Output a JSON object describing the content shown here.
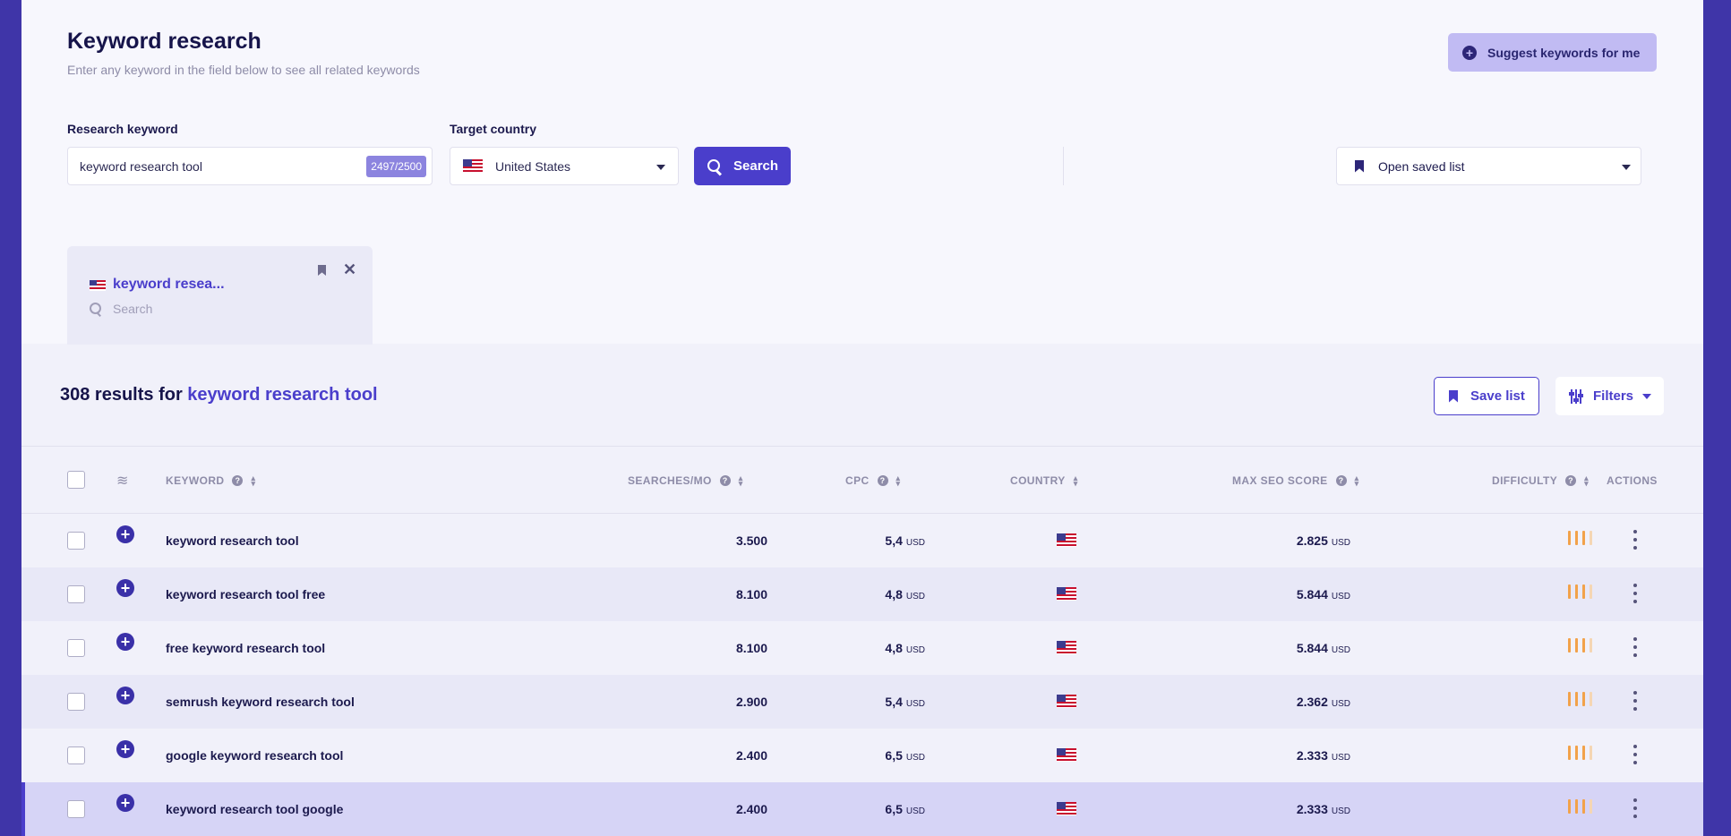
{
  "header": {
    "title": "Keyword research",
    "subtitle": "Enter any keyword in the field below to see all related keywords",
    "suggest_label": "Suggest keywords for me"
  },
  "search": {
    "keyword_label": "Research keyword",
    "keyword_value": "keyword research tool",
    "keyword_count": "2497/2500",
    "country_label": "Target country",
    "country_value": "United States",
    "search_label": "Search",
    "saved_list_label": "Open saved list"
  },
  "tab": {
    "title": "keyword resea...",
    "search_placeholder": "Search"
  },
  "results": {
    "count_prefix": "308 results for ",
    "query": "keyword research tool",
    "save_list_label": "Save list",
    "filters_label": "Filters"
  },
  "table": {
    "headers": {
      "keyword": "KEYWORD",
      "searches": "SEARCHES/MO",
      "cpc": "CPC",
      "country": "COUNTRY",
      "max_seo": "MAX SEO SCORE",
      "difficulty": "DIFFICULTY",
      "actions": "ACTIONS"
    },
    "unit": "USD",
    "rows": [
      {
        "keyword": "keyword research tool",
        "searches": "3.500",
        "cpc": "5,4",
        "max_seo": "2.825",
        "difficulty": 3
      },
      {
        "keyword": "keyword research tool free",
        "searches": "8.100",
        "cpc": "4,8",
        "max_seo": "5.844",
        "difficulty": 3
      },
      {
        "keyword": "free keyword research tool",
        "searches": "8.100",
        "cpc": "4,8",
        "max_seo": "5.844",
        "difficulty": 3
      },
      {
        "keyword": "semrush keyword research tool",
        "searches": "2.900",
        "cpc": "5,4",
        "max_seo": "2.362",
        "difficulty": 3
      },
      {
        "keyword": "google keyword research tool",
        "searches": "2.400",
        "cpc": "6,5",
        "max_seo": "2.333",
        "difficulty": 3
      },
      {
        "keyword": "keyword research tool google",
        "searches": "2.400",
        "cpc": "6,5",
        "max_seo": "2.333",
        "difficulty": 3
      }
    ]
  },
  "colors": {
    "accent": "#4a3ecb",
    "difficulty_on": "#f2a24a",
    "difficulty_off": "#f5d6b3"
  }
}
